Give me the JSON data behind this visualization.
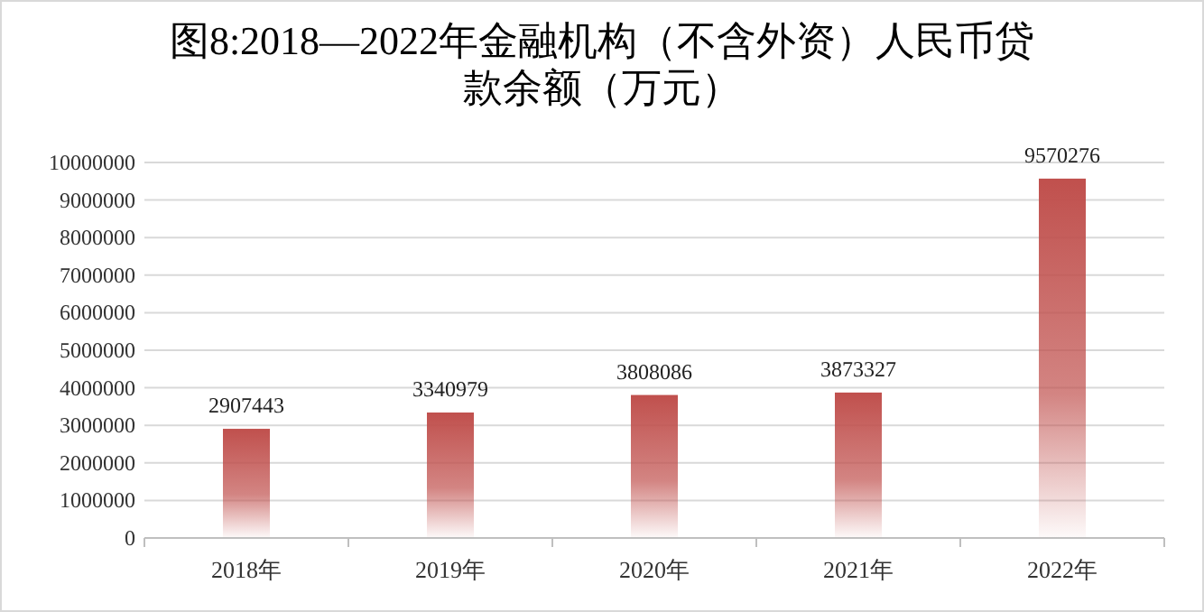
{
  "chart_data": {
    "type": "bar",
    "title": "图8:2018—2022年金融机构（不含外资）人民币贷款余额（万元）",
    "categories": [
      "2018年",
      "2019年",
      "2020年",
      "2021年",
      "2022年"
    ],
    "values": [
      2907443,
      3340979,
      3808086,
      3873327,
      9570276
    ],
    "color": "#c0504d",
    "ylim": [
      0,
      10000000
    ],
    "yticks": [
      0,
      1000000,
      2000000,
      3000000,
      4000000,
      5000000,
      6000000,
      7000000,
      8000000,
      9000000,
      10000000
    ],
    "grid": "y",
    "data_labels": true
  }
}
